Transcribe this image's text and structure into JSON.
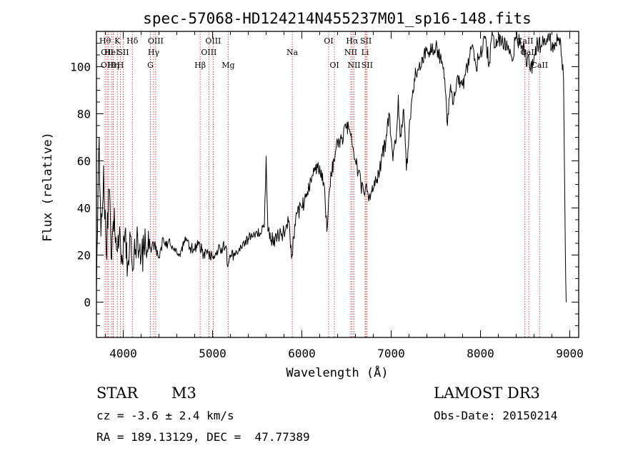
{
  "chart_data": {
    "type": "line",
    "title": "spec-57068-HD124214N455237M01_sp16-148.fits",
    "xlabel": "Wavelength (Å)",
    "ylabel": "Flux (relative)",
    "xlim": [
      3700,
      9100
    ],
    "ylim": [
      -15,
      115
    ],
    "x_ticks": [
      4000,
      5000,
      6000,
      7000,
      8000,
      9000
    ],
    "y_ticks": [
      0,
      20,
      40,
      60,
      80,
      100
    ],
    "grid": false,
    "series": [
      {
        "x": [
          3700,
          3730,
          3750,
          3780,
          3810,
          3840,
          3870,
          3900,
          3930,
          3960,
          3990,
          4020,
          4050,
          4080,
          4110,
          4150,
          4200,
          4250,
          4300,
          4350,
          4400,
          4450,
          4500,
          4550,
          4600,
          4650,
          4700,
          4750,
          4800,
          4850,
          4900,
          4950,
          5000,
          5050,
          5100,
          5150,
          5170,
          5200,
          5250,
          5300,
          5350,
          5400,
          5450,
          5500,
          5550,
          5580,
          5600,
          5620,
          5650,
          5700,
          5750,
          5800,
          5850,
          5890,
          5920,
          5950,
          6000,
          6050,
          6100,
          6150,
          6200,
          6250,
          6280,
          6300,
          6330,
          6360,
          6400,
          6450,
          6500,
          6540,
          6560,
          6580,
          6600,
          6630,
          6660,
          6690,
          6710,
          6730,
          6760,
          6800,
          6830,
          6870,
          6900,
          6940,
          6980,
          7020,
          7060,
          7080,
          7100,
          7140,
          7170,
          7200,
          7230,
          7260,
          7300,
          7350,
          7400,
          7450,
          7500,
          7550,
          7600,
          7630,
          7660,
          7700,
          7750,
          7800,
          7850,
          7900,
          7950,
          8000,
          8050,
          8100,
          8130,
          8160,
          8200,
          8250,
          8300,
          8350,
          8400,
          8450,
          8500,
          8520,
          8540,
          8560,
          8600,
          8640,
          8680,
          8720,
          8760,
          8800,
          8840,
          8880,
          8910,
          8930,
          8950,
          8960
        ],
        "y": [
          5,
          70,
          28,
          58,
          20,
          48,
          18,
          40,
          22,
          32,
          17,
          30,
          16,
          28,
          14,
          26,
          19,
          24,
          23,
          25,
          19,
          27,
          25,
          24,
          21,
          22,
          26,
          23,
          22,
          25,
          20,
          21,
          19,
          22,
          23,
          24,
          15,
          19,
          21,
          23,
          26,
          27,
          28,
          29,
          30,
          32,
          62,
          30,
          26,
          27,
          28,
          30,
          34,
          20,
          33,
          38,
          40,
          46,
          52,
          56,
          58,
          50,
          30,
          44,
          54,
          60,
          68,
          70,
          74,
          72,
          68,
          64,
          60,
          55,
          50,
          47,
          48,
          47,
          46,
          48,
          52,
          55,
          62,
          68,
          80,
          60,
          72,
          88,
          70,
          82,
          56,
          72,
          86,
          95,
          99,
          104,
          108,
          106,
          109,
          104,
          95,
          75,
          90,
          85,
          96,
          92,
          100,
          108,
          100,
          106,
          112,
          102,
          115,
          108,
          112,
          110,
          109,
          104,
          112,
          110,
          107,
          100,
          105,
          98,
          104,
          110,
          109,
          112,
          114,
          108,
          110,
          112,
          104,
          95,
          22,
          0
        ]
      }
    ],
    "line_markers": [
      {
        "wl": 3797,
        "label": "Hθ",
        "row": 0
      },
      {
        "wl": 3820,
        "label": "OII",
        "row": 1
      },
      {
        "wl": 3835,
        "label": "OIII",
        "row": 2
      },
      {
        "wl": 3869,
        "label": "HeI",
        "row": 1
      },
      {
        "wl": 3889,
        "label": "Hη",
        "row": 2
      },
      {
        "wl": 3934,
        "label": "K",
        "row": 0
      },
      {
        "wl": 3968,
        "label": "H",
        "row": 2
      },
      {
        "wl": 4000,
        "label": "SII",
        "row": 1
      },
      {
        "wl": 4102,
        "label": "Hδ",
        "row": 0
      },
      {
        "wl": 4304,
        "label": "G",
        "row": 2
      },
      {
        "wl": 4340,
        "label": "Hγ",
        "row": 1
      },
      {
        "wl": 4363,
        "label": "OIII",
        "row": 0
      },
      {
        "wl": 4861,
        "label": "Hβ",
        "row": 2
      },
      {
        "wl": 4959,
        "label": "OIII",
        "row": 1
      },
      {
        "wl": 5007,
        "label": "OIII",
        "row": 0
      },
      {
        "wl": 5175,
        "label": "Mg",
        "row": 2
      },
      {
        "wl": 5893,
        "label": "Na",
        "row": 1
      },
      {
        "wl": 6300,
        "label": "OI",
        "row": 0
      },
      {
        "wl": 6364,
        "label": "OI",
        "row": 2
      },
      {
        "wl": 6548,
        "label": "NII",
        "row": 1
      },
      {
        "wl": 6563,
        "label": "Hα",
        "row": 0
      },
      {
        "wl": 6584,
        "label": "NII",
        "row": 2
      },
      {
        "wl": 6708,
        "label": "Li",
        "row": 1
      },
      {
        "wl": 6717,
        "label": "SII",
        "row": 0
      },
      {
        "wl": 6731,
        "label": "SII",
        "row": 2
      },
      {
        "wl": 8498,
        "label": "CaII",
        "row": 0
      },
      {
        "wl": 8542,
        "label": "CaII",
        "row": 1
      },
      {
        "wl": 8662,
        "label": "CaII",
        "row": 2
      }
    ]
  },
  "info": {
    "class": "STAR",
    "subclass": "M3",
    "survey": "LAMOST DR3",
    "cz": "cz = -3.6 ± 2.4 km/s",
    "obs_date": "Obs-Date: 20150214",
    "coords": "RA = 189.13129, DEC =  47.77389"
  },
  "colors": {
    "spectrum": "#000000",
    "marker_line": "#cc2222",
    "axes": "#000000"
  }
}
